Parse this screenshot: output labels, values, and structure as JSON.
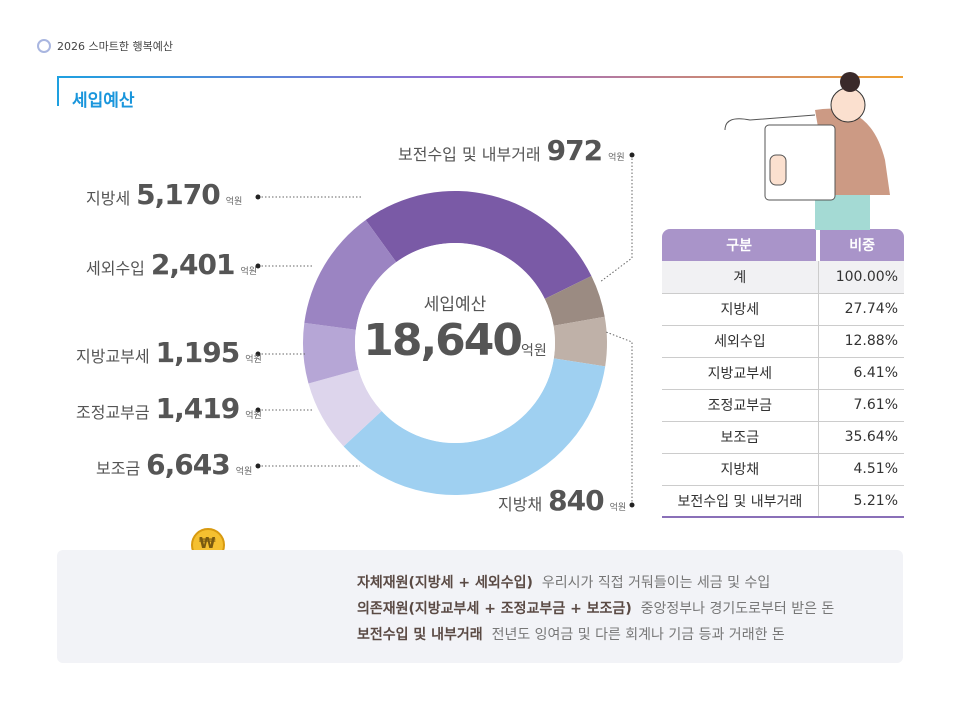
{
  "header": {
    "doc_title": "2026 스마트한 행복예산",
    "section_title": "세입예산"
  },
  "chart_data": {
    "type": "pie",
    "donut": true,
    "center_label": "세입예산",
    "center_value": "18,640",
    "unit": "억원",
    "categories": [
      "지방세",
      "지방채",
      "보전수입 및 내부거래",
      "보조금",
      "조정교부금",
      "지방교부세",
      "세외수입"
    ],
    "values": [
      5170,
      840,
      972,
      6643,
      1419,
      1195,
      2401
    ],
    "value_labels": [
      "5,170",
      "840",
      "972",
      "6,643",
      "1,419",
      "1,195",
      "2,401"
    ],
    "colors": [
      "#7a5aa6",
      "#9b8b82",
      "#bfb1a8",
      "#9fd0f1",
      "#ddd5ec",
      "#b6a6d6",
      "#9b84c2"
    ]
  },
  "table": {
    "headers": [
      "구분",
      "비중"
    ],
    "rows": [
      [
        "계",
        "100.00%"
      ],
      [
        "지방세",
        "27.74%"
      ],
      [
        "세외수입",
        "12.88%"
      ],
      [
        "지방교부세",
        "6.41%"
      ],
      [
        "조정교부금",
        "7.61%"
      ],
      [
        "보조금",
        "35.64%"
      ],
      [
        "지방채",
        "4.51%"
      ],
      [
        "보전수입 및 내부거래",
        "5.21%"
      ]
    ]
  },
  "notes": [
    {
      "term": "자체재원(지방세 + 세외수입)",
      "desc": "우리시가 직접 거둬들이는 세금 및 수입"
    },
    {
      "term": "의존재원(지방교부세 + 조정교부금 + 보조금)",
      "desc": "중앙정부나 경기도로부터 받은 돈"
    },
    {
      "term": "보전수입 및 내부거래",
      "desc": "전년도 잉여금 및 다른 회계나 기금 등과 거래한 돈"
    }
  ],
  "illustration": {
    "coin_symbol": "₩"
  }
}
